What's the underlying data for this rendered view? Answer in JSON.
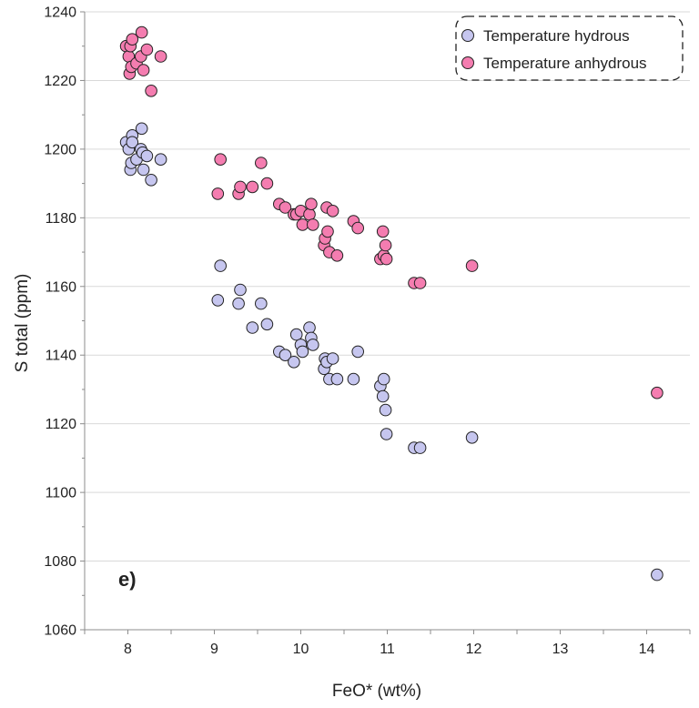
{
  "chart_data": {
    "type": "scatter",
    "panel_label": "e)",
    "xlabel": "FeO* (wt%)",
    "ylabel": "S total (ppm)",
    "xlim": [
      7.5,
      14.5
    ],
    "ylim": [
      1060,
      1240
    ],
    "x_ticks": [
      "8",
      "9",
      "10",
      "11",
      "12",
      "13",
      "14"
    ],
    "y_ticks": [
      "1060",
      "1080",
      "1100",
      "1120",
      "1140",
      "1160",
      "1180",
      "1200",
      "1220",
      "1240"
    ],
    "grid": "horizontal",
    "legend_position": "top-right",
    "series": [
      {
        "name": "Temperature hydrous",
        "color": "#c6c6ef",
        "points": [
          [
            7.98,
            1202
          ],
          [
            8.01,
            1200
          ],
          [
            8.03,
            1194
          ],
          [
            8.04,
            1196
          ],
          [
            8.05,
            1204
          ],
          [
            8.05,
            1202
          ],
          [
            8.1,
            1197
          ],
          [
            8.15,
            1200
          ],
          [
            8.16,
            1206
          ],
          [
            8.17,
            1199
          ],
          [
            8.18,
            1194
          ],
          [
            8.22,
            1198
          ],
          [
            8.27,
            1191
          ],
          [
            8.38,
            1197
          ],
          [
            9.04,
            1156
          ],
          [
            9.07,
            1166
          ],
          [
            9.28,
            1155
          ],
          [
            9.3,
            1159
          ],
          [
            9.44,
            1148
          ],
          [
            9.54,
            1155
          ],
          [
            9.61,
            1149
          ],
          [
            9.75,
            1141
          ],
          [
            9.82,
            1140
          ],
          [
            9.92,
            1138
          ],
          [
            9.95,
            1146
          ],
          [
            10.0,
            1143
          ],
          [
            10.02,
            1141
          ],
          [
            10.1,
            1148
          ],
          [
            10.12,
            1145
          ],
          [
            10.14,
            1143
          ],
          [
            10.27,
            1136
          ],
          [
            10.28,
            1139
          ],
          [
            10.3,
            1138
          ],
          [
            10.33,
            1133
          ],
          [
            10.37,
            1139
          ],
          [
            10.42,
            1133
          ],
          [
            10.61,
            1133
          ],
          [
            10.66,
            1141
          ],
          [
            10.92,
            1131
          ],
          [
            10.95,
            1128
          ],
          [
            10.96,
            1133
          ],
          [
            10.98,
            1124
          ],
          [
            10.99,
            1117
          ],
          [
            11.31,
            1113
          ],
          [
            11.38,
            1113
          ],
          [
            11.98,
            1116
          ],
          [
            14.12,
            1076
          ]
        ]
      },
      {
        "name": "Temperature anhydrous",
        "color": "#f47db0",
        "points": [
          [
            7.98,
            1230
          ],
          [
            8.01,
            1227
          ],
          [
            8.02,
            1222
          ],
          [
            8.03,
            1230
          ],
          [
            8.04,
            1224
          ],
          [
            8.05,
            1232
          ],
          [
            8.1,
            1225
          ],
          [
            8.15,
            1227
          ],
          [
            8.16,
            1234
          ],
          [
            8.18,
            1223
          ],
          [
            8.22,
            1229
          ],
          [
            8.27,
            1217
          ],
          [
            8.38,
            1227
          ],
          [
            9.04,
            1187
          ],
          [
            9.07,
            1197
          ],
          [
            9.28,
            1187
          ],
          [
            9.3,
            1189
          ],
          [
            9.44,
            1189
          ],
          [
            9.54,
            1196
          ],
          [
            9.61,
            1190
          ],
          [
            9.75,
            1184
          ],
          [
            9.82,
            1183
          ],
          [
            9.92,
            1181
          ],
          [
            9.95,
            1181
          ],
          [
            10.0,
            1182
          ],
          [
            10.02,
            1178
          ],
          [
            10.1,
            1181
          ],
          [
            10.12,
            1184
          ],
          [
            10.14,
            1178
          ],
          [
            10.27,
            1172
          ],
          [
            10.28,
            1174
          ],
          [
            10.3,
            1183
          ],
          [
            10.31,
            1176
          ],
          [
            10.33,
            1170
          ],
          [
            10.37,
            1182
          ],
          [
            10.42,
            1169
          ],
          [
            10.61,
            1179
          ],
          [
            10.66,
            1177
          ],
          [
            10.92,
            1168
          ],
          [
            10.95,
            1176
          ],
          [
            10.96,
            1169
          ],
          [
            10.98,
            1172
          ],
          [
            10.99,
            1168
          ],
          [
            11.31,
            1161
          ],
          [
            11.38,
            1161
          ],
          [
            11.98,
            1166
          ],
          [
            14.12,
            1129
          ]
        ]
      }
    ]
  }
}
